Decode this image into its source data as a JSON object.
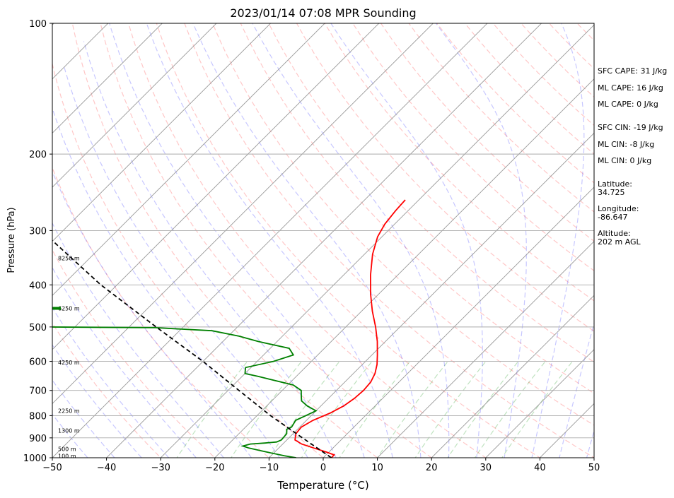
{
  "chart_data": {
    "type": "line",
    "title": "2023/01/14 07:08 MPR Sounding",
    "xlabel": "Temperature (°C)",
    "ylabel": "Pressure (hPa)",
    "xlim": [
      -50,
      50
    ],
    "ylim": [
      1000,
      100
    ],
    "y_scale": "log",
    "grid": true,
    "x_ticks": [
      "−50",
      "−40",
      "−30",
      "−20",
      "−10",
      "0",
      "10",
      "20",
      "30",
      "40",
      "50"
    ],
    "y_ticks": [
      "100",
      "200",
      "300",
      "400",
      "500",
      "600",
      "700",
      "800",
      "900",
      "1000"
    ],
    "series": [
      {
        "color": "#ff0000",
        "points": [
          {
            "p": 1000,
            "t": 1.5
          },
          {
            "p": 985,
            "t": 1.5
          },
          {
            "p": 970,
            "t": -0.5
          },
          {
            "p": 950,
            "t": -3.5
          },
          {
            "p": 930,
            "t": -6.5
          },
          {
            "p": 910,
            "t": -8.5
          },
          {
            "p": 880,
            "t": -9.5
          },
          {
            "p": 850,
            "t": -9.7
          },
          {
            "p": 820,
            "t": -8.8
          },
          {
            "p": 790,
            "t": -7.0
          },
          {
            "p": 760,
            "t": -5.8
          },
          {
            "p": 730,
            "t": -5.2
          },
          {
            "p": 700,
            "t": -5.0
          },
          {
            "p": 670,
            "t": -5.2
          },
          {
            "p": 640,
            "t": -6.0
          },
          {
            "p": 610,
            "t": -7.3
          },
          {
            "p": 580,
            "t": -9.0
          },
          {
            "p": 540,
            "t": -11.5
          },
          {
            "p": 500,
            "t": -14.5
          },
          {
            "p": 460,
            "t": -18.0
          },
          {
            "p": 420,
            "t": -21.5
          },
          {
            "p": 380,
            "t": -25.0
          },
          {
            "p": 340,
            "t": -28.5
          },
          {
            "p": 310,
            "t": -30.8
          },
          {
            "p": 290,
            "t": -31.8
          },
          {
            "p": 270,
            "t": -32.3
          },
          {
            "p": 255,
            "t": -32.5
          }
        ]
      },
      {
        "color": "#008000",
        "points": [
          {
            "p": 1000,
            "t": -5.0
          },
          {
            "p": 990,
            "t": -7.5
          },
          {
            "p": 970,
            "t": -11.5
          },
          {
            "p": 950,
            "t": -15.5
          },
          {
            "p": 940,
            "t": -17.0
          },
          {
            "p": 930,
            "t": -16.0
          },
          {
            "p": 925,
            "t": -13.5
          },
          {
            "p": 920,
            "t": -11.5
          },
          {
            "p": 910,
            "t": -11.0
          },
          {
            "p": 880,
            "t": -11.2
          },
          {
            "p": 860,
            "t": -12.0
          },
          {
            "p": 850,
            "t": -11.5
          },
          {
            "p": 820,
            "t": -12.0
          },
          {
            "p": 800,
            "t": -11.0
          },
          {
            "p": 780,
            "t": -10.0
          },
          {
            "p": 760,
            "t": -12.5
          },
          {
            "p": 740,
            "t": -14.5
          },
          {
            "p": 720,
            "t": -15.5
          },
          {
            "p": 700,
            "t": -16.5
          },
          {
            "p": 680,
            "t": -19.0
          },
          {
            "p": 650,
            "t": -27.0
          },
          {
            "p": 640,
            "t": -30.0
          },
          {
            "p": 620,
            "t": -31.0
          },
          {
            "p": 600,
            "t": -27.0
          },
          {
            "p": 580,
            "t": -24.5
          },
          {
            "p": 560,
            "t": -26.5
          },
          {
            "p": 540,
            "t": -33.5
          },
          {
            "p": 525,
            "t": -38.0
          },
          {
            "p": 510,
            "t": -44.0
          },
          {
            "p": 502,
            "t": -55.0
          },
          {
            "p": 500,
            "t": -75.0
          }
        ]
      },
      {
        "color": "#000000",
        "dashed": true,
        "points": [
          {
            "p": 1000,
            "t": 1.5
          },
          {
            "p": 900,
            "t": -7.5
          },
          {
            "p": 800,
            "t": -17.5
          },
          {
            "p": 700,
            "t": -28.0
          },
          {
            "p": 600,
            "t": -40.0
          },
          {
            "p": 500,
            "t": -55.0
          },
          {
            "p": 400,
            "t": -73.0
          },
          {
            "p": 300,
            "t": -94.0
          }
        ]
      }
    ],
    "height_labels": [
      {
        "p": 990,
        "text": "100 m"
      },
      {
        "p": 955,
        "text": "500 m"
      },
      {
        "p": 865,
        "text": "1300 m"
      },
      {
        "p": 780,
        "text": "2250 m"
      },
      {
        "p": 603,
        "text": "4250 m"
      },
      {
        "p": 453,
        "text": "6250 m"
      },
      {
        "p": 347,
        "text": "8250 m"
      }
    ],
    "height_marker_color": "#008000",
    "height_marker_pressure": 453
  },
  "stats": {
    "sfc_cape": "SFC CAPE: 31 J/kg",
    "ml_cape_1": "ML CAPE: 16 J/kg",
    "ml_cape_2": "ML CAPE: 0 J/kg",
    "sfc_cin": "SFC CIN: -19 J/kg",
    "ml_cin_1": "ML CIN: -8 J/kg",
    "ml_cin_2": "ML CIN: 0 J/kg",
    "latitude": "Latitude:\n34.725",
    "longitude": "Longitude:\n-86.647",
    "altitude": "Altitude:\n202 m AGL"
  }
}
